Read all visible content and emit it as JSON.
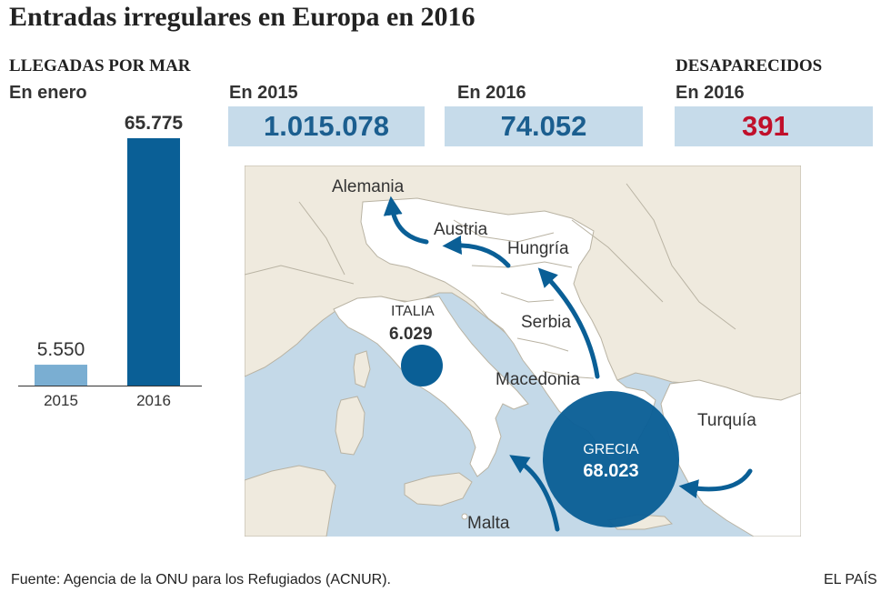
{
  "header": {
    "title": "Entradas irregulares en Europa en 2016"
  },
  "left_panel": {
    "heading": "LLEGADAS POR MAR",
    "subheading": "En enero"
  },
  "chart_data": {
    "type": "bar",
    "categories": [
      "2015",
      "2016"
    ],
    "values": [
      5550,
      65775
    ],
    "value_labels": [
      "5.550",
      "65.775"
    ],
    "colors": [
      "#7aaed2",
      "#0a5f96"
    ],
    "title": "",
    "xlabel": "",
    "ylabel": ""
  },
  "stats": {
    "arrivals_2015_label": "En 2015",
    "arrivals_2015_value": "1.015.078",
    "arrivals_2016_label": "En 2016",
    "arrivals_2016_value": "74.052",
    "missing_heading": "DESAPARECIDOS",
    "missing_label": "En 2016",
    "missing_value": "391"
  },
  "map": {
    "labels": {
      "alemania": "Alemania",
      "austria": "Austria",
      "hungria": "Hungría",
      "serbia": "Serbia",
      "macedonia": "Macedonia",
      "turquia": "Turquía",
      "malta": "Malta",
      "italia": "ITALIA",
      "italia_value": "6.029",
      "grecia": "GRECIA",
      "grecia_value": "68.023"
    },
    "colors": {
      "sea": "#c4d9e8",
      "land": "#efeade",
      "route_land": "#ffffff",
      "circle": "#0a5f96",
      "arrow": "#0a5f96"
    }
  },
  "footer": {
    "source": "Fuente: Agencia de la ONU para los Refugiados (ACNUR).",
    "brand": "EL PAÍS"
  }
}
